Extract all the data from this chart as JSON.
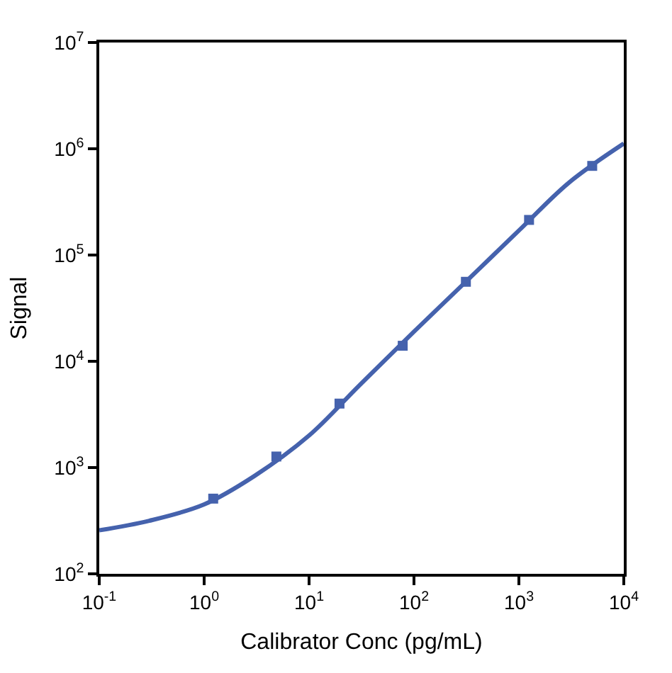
{
  "chart_data": {
    "type": "scatter",
    "xlabel": "Calibrator Conc (pg/mL)",
    "ylabel": "Signal",
    "log": "xy",
    "xlim": [
      0.1,
      10000
    ],
    "ylim": [
      100,
      10000000
    ],
    "xticks": [
      {
        "value": 0.1,
        "label": "10$^{-1}$"
      },
      {
        "value": 1,
        "label": "10$^{0}$"
      },
      {
        "value": 10,
        "label": "10$^{1}$"
      },
      {
        "value": 100,
        "label": "10$^{2}$"
      },
      {
        "value": 1000,
        "label": "10$^{3}$"
      },
      {
        "value": 10000,
        "label": "10$^{4}$"
      }
    ],
    "yticks": [
      {
        "value": 100,
        "label": "10$^{2}$"
      },
      {
        "value": 1000,
        "label": "10$^{3}$"
      },
      {
        "value": 10000,
        "label": "10$^{4}$"
      },
      {
        "value": 100000,
        "label": "10$^{5}$"
      },
      {
        "value": 1000000,
        "label": "10$^{6}$"
      },
      {
        "value": 10000000,
        "label": "10$^{7}$"
      }
    ],
    "series": [
      {
        "type": "line",
        "color": "#4562ad",
        "line_style": "solid",
        "x": [
          0.1,
          0.3,
          1,
          3,
          10,
          30,
          100,
          300,
          1000,
          3000,
          10000
        ],
        "values": [
          257,
          316,
          450,
          830,
          2000,
          5900,
          19000,
          54000,
          170000,
          480000,
          1120000
        ]
      },
      {
        "color": "#4562ad",
        "marker": "square",
        "x": [
          1.22,
          4.88,
          19.5,
          78.1,
          312.5,
          1250,
          5000
        ],
        "values": [
          510,
          1270,
          4000,
          14000,
          56000,
          214000,
          690000
        ]
      }
    ]
  }
}
